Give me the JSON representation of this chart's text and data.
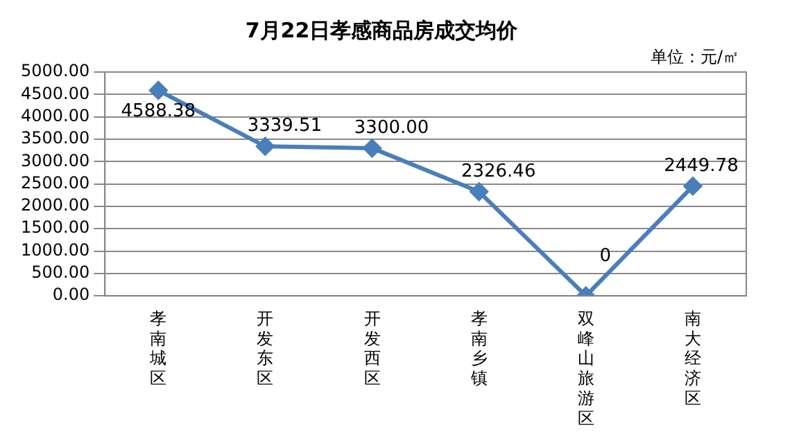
{
  "chart_data": {
    "type": "line",
    "title": "7月22日孝感商品房成交均价",
    "annotations": [
      "单位：元/㎡"
    ],
    "categories": [
      "孝南城区",
      "开发东区",
      "开发西区",
      "孝南乡镇",
      "双峰山旅游区",
      "南大经济区"
    ],
    "series": [
      {
        "color": "#4a7ebb",
        "values": [
          4588.38,
          3339.51,
          3300.0,
          2326.46,
          0,
          2449.78
        ],
        "value_labels": [
          "4588.38",
          "3339.51",
          "3300.00",
          "2326.46",
          "0",
          "2449.78"
        ]
      }
    ],
    "ylim": [
      0,
      5000
    ],
    "yticks": [
      {
        "value": 0,
        "label": "0.00"
      },
      {
        "value": 500,
        "label": "500.00"
      },
      {
        "value": 1000,
        "label": "1000.00"
      },
      {
        "value": 1500,
        "label": "1500.00"
      },
      {
        "value": 2000,
        "label": "2000.00"
      },
      {
        "value": 2500,
        "label": "2500.00"
      },
      {
        "value": 3000,
        "label": "3000.00"
      },
      {
        "value": 3500,
        "label": "3500.00"
      },
      {
        "value": 4000,
        "label": "4000.00"
      },
      {
        "value": 4500,
        "label": "4500.00"
      },
      {
        "value": 5000,
        "label": "5000.00"
      }
    ],
    "grid": "y",
    "legend": false,
    "marker": "diamond",
    "line_style": "solid"
  }
}
